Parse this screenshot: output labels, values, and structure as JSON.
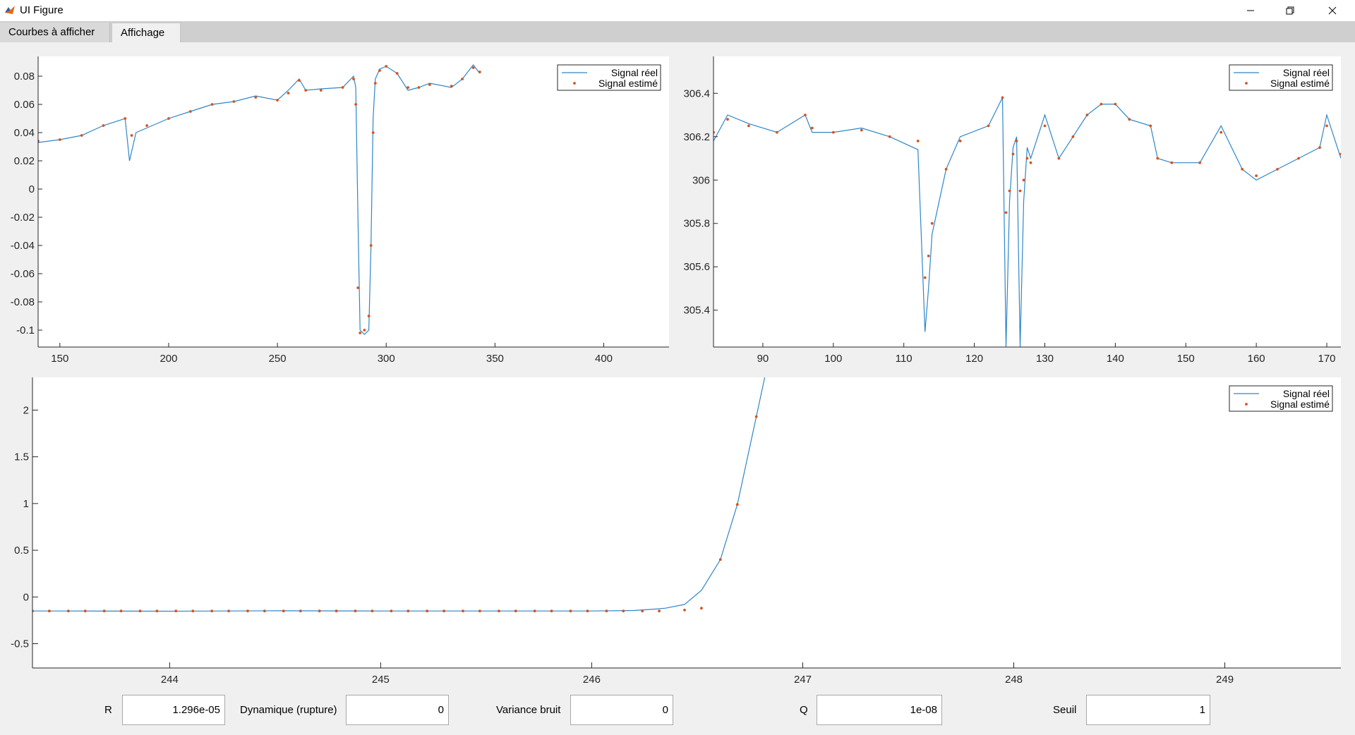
{
  "window": {
    "title": "UI Figure"
  },
  "tabs": [
    {
      "label": "Courbes à afficher",
      "active": false
    },
    {
      "label": "Affichage",
      "active": true
    }
  ],
  "legend": {
    "real": "Signal réel",
    "estimated": "Signal estimé"
  },
  "colors": {
    "real": "#2f86c8",
    "estimated": "#d95319",
    "axes": "#262626",
    "plot_bg": "#ffffff"
  },
  "icons": {
    "app": "matlab-icon",
    "minimize": "minimize-icon",
    "maximize": "maximize-icon",
    "close": "close-icon"
  },
  "controls": [
    {
      "label": "R",
      "value": "1.296e-05"
    },
    {
      "label": "Dynamique (rupture)",
      "value": "0"
    },
    {
      "label": "Variance bruit",
      "value": "0"
    },
    {
      "label": "Q",
      "value": "1e-08"
    },
    {
      "label": "Seuil",
      "value": "1"
    }
  ],
  "chart_data": [
    {
      "type": "line",
      "name": "top-left-plot",
      "xlim": [
        140,
        430
      ],
      "ylim": [
        -0.112,
        0.094
      ],
      "xticks": [
        150,
        200,
        250,
        300,
        350,
        400
      ],
      "yticks": [
        0.08,
        0.06,
        0.04,
        0.02,
        0,
        -0.02,
        -0.04,
        -0.06,
        -0.08,
        -0.1
      ],
      "ytick_labels": [
        "0.08",
        "0.06",
        "0.04",
        "0.02",
        "0",
        "-0.02",
        "-0.04",
        "-0.06",
        "-0.08",
        "-0.1"
      ],
      "legend": "top-right",
      "real_x": [
        140,
        150,
        160,
        170,
        180,
        182,
        185,
        200,
        210,
        220,
        230,
        240,
        250,
        255,
        260,
        263,
        270,
        280,
        285,
        286,
        287,
        288,
        290,
        292,
        293,
        294,
        295,
        297,
        300,
        305,
        310,
        315,
        320,
        330,
        335,
        340,
        343
      ],
      "real_y": [
        0.033,
        0.035,
        0.038,
        0.045,
        0.05,
        0.02,
        0.04,
        0.05,
        0.055,
        0.06,
        0.062,
        0.066,
        0.063,
        0.07,
        0.078,
        0.07,
        0.071,
        0.072,
        0.08,
        0.072,
        -0.02,
        -0.1,
        -0.103,
        -0.1,
        -0.04,
        0.05,
        0.078,
        0.085,
        0.087,
        0.082,
        0.07,
        0.072,
        0.075,
        0.072,
        0.078,
        0.088,
        0.082
      ],
      "est_x": [
        140,
        150,
        160,
        170,
        180,
        183,
        190,
        200,
        210,
        220,
        230,
        240,
        250,
        255,
        260,
        263,
        270,
        280,
        285,
        286,
        287,
        288,
        290,
        292,
        293,
        294,
        295,
        297,
        300,
        305,
        310,
        315,
        320,
        330,
        335,
        340,
        343
      ],
      "est_y": [
        0.034,
        0.035,
        0.038,
        0.045,
        0.05,
        0.038,
        0.045,
        0.05,
        0.055,
        0.06,
        0.062,
        0.065,
        0.063,
        0.068,
        0.077,
        0.07,
        0.07,
        0.072,
        0.078,
        0.06,
        -0.07,
        -0.102,
        -0.1,
        -0.09,
        -0.04,
        0.04,
        0.075,
        0.084,
        0.087,
        0.082,
        0.072,
        0.072,
        0.074,
        0.073,
        0.078,
        0.086,
        0.083
      ]
    },
    {
      "type": "line",
      "name": "top-right-plot",
      "xlim": [
        83,
        172
      ],
      "ylim": [
        305.23,
        306.57
      ],
      "xticks": [
        90,
        100,
        110,
        120,
        130,
        140,
        150,
        160,
        170
      ],
      "yticks": [
        306.4,
        306.2,
        306,
        305.8,
        305.6,
        305.4
      ],
      "ytick_labels": [
        "306.4",
        "306.2",
        "306",
        "305.8",
        "305.6",
        "305.4"
      ],
      "legend": "top-right",
      "real_x": [
        83,
        85,
        88,
        92,
        96,
        97,
        100,
        104,
        108,
        112,
        113,
        113.5,
        114,
        116,
        118,
        122,
        124,
        124.5,
        125,
        125.5,
        126,
        126.5,
        127,
        127.5,
        128,
        130,
        132,
        134,
        136,
        138,
        140,
        142,
        145,
        146,
        148,
        152,
        155,
        158,
        160,
        163,
        166,
        169,
        170,
        172
      ],
      "real_y": [
        306.18,
        306.3,
        306.26,
        306.22,
        306.3,
        306.22,
        306.22,
        306.24,
        306.2,
        306.14,
        305.3,
        305.5,
        305.75,
        306.05,
        306.2,
        306.25,
        306.38,
        305.23,
        305.9,
        306.15,
        306.2,
        305.23,
        305.9,
        306.15,
        306.1,
        306.3,
        306.1,
        306.2,
        306.3,
        306.35,
        306.35,
        306.28,
        306.25,
        306.1,
        306.08,
        306.08,
        306.25,
        306.05,
        306.0,
        306.05,
        306.1,
        306.15,
        306.3,
        306.1
      ],
      "est_x": [
        83,
        85,
        88,
        92,
        96,
        97,
        100,
        104,
        108,
        112,
        113,
        113.5,
        114,
        116,
        118,
        122,
        124,
        124.5,
        125,
        125.5,
        126,
        126.5,
        127,
        127.5,
        128,
        130,
        132,
        134,
        136,
        138,
        140,
        142,
        145,
        146,
        148,
        152,
        155,
        158,
        160,
        163,
        166,
        169,
        170,
        172
      ],
      "est_y": [
        306.22,
        306.28,
        306.25,
        306.22,
        306.3,
        306.24,
        306.22,
        306.23,
        306.2,
        306.18,
        305.55,
        305.65,
        305.8,
        306.05,
        306.18,
        306.25,
        306.38,
        305.85,
        305.95,
        306.12,
        306.18,
        305.95,
        306.0,
        306.1,
        306.08,
        306.25,
        306.1,
        306.2,
        306.3,
        306.35,
        306.35,
        306.28,
        306.25,
        306.1,
        306.08,
        306.08,
        306.22,
        306.05,
        306.02,
        306.05,
        306.1,
        306.15,
        306.25,
        306.12
      ]
    },
    {
      "type": "line",
      "name": "bottom-plot",
      "xlim": [
        243.35,
        249.55
      ],
      "ylim": [
        -0.76,
        2.35
      ],
      "xticks": [
        244,
        245,
        246,
        247,
        248,
        249
      ],
      "yticks": [
        2,
        1.5,
        1,
        0.5,
        0,
        -0.5
      ],
      "ytick_labels": [
        "2",
        "1.5",
        "1",
        "0.5",
        "0",
        "-0.5"
      ],
      "legend": "top-right",
      "real_x": [
        243.35,
        243.5,
        244.0,
        244.5,
        245.0,
        245.5,
        246.0,
        246.2,
        246.3,
        246.35,
        246.44,
        246.52,
        246.61,
        246.69,
        246.78,
        246.82
      ],
      "real_y": [
        -0.15,
        -0.15,
        -0.152,
        -0.148,
        -0.15,
        -0.15,
        -0.15,
        -0.145,
        -0.13,
        -0.12,
        -0.08,
        0.07,
        0.4,
        0.99,
        1.93,
        2.35
      ],
      "est_x": [
        243.35,
        243.43,
        243.52,
        243.6,
        243.69,
        243.77,
        243.86,
        243.94,
        244.03,
        244.11,
        244.2,
        244.28,
        244.37,
        244.45,
        244.54,
        244.62,
        244.71,
        244.79,
        244.88,
        244.96,
        245.05,
        245.13,
        245.22,
        245.3,
        245.39,
        245.47,
        245.56,
        245.64,
        245.73,
        245.81,
        245.9,
        245.98,
        246.07,
        246.15,
        246.24,
        246.32,
        246.44,
        246.52,
        246.61,
        246.69,
        246.78
      ],
      "est_y": [
        -0.15,
        -0.15,
        -0.15,
        -0.15,
        -0.15,
        -0.15,
        -0.15,
        -0.15,
        -0.15,
        -0.15,
        -0.15,
        -0.15,
        -0.15,
        -0.15,
        -0.15,
        -0.15,
        -0.15,
        -0.15,
        -0.15,
        -0.15,
        -0.15,
        -0.15,
        -0.15,
        -0.15,
        -0.15,
        -0.15,
        -0.15,
        -0.15,
        -0.15,
        -0.15,
        -0.15,
        -0.15,
        -0.15,
        -0.15,
        -0.15,
        -0.15,
        -0.14,
        -0.12,
        0.4,
        0.99,
        1.93
      ]
    }
  ]
}
